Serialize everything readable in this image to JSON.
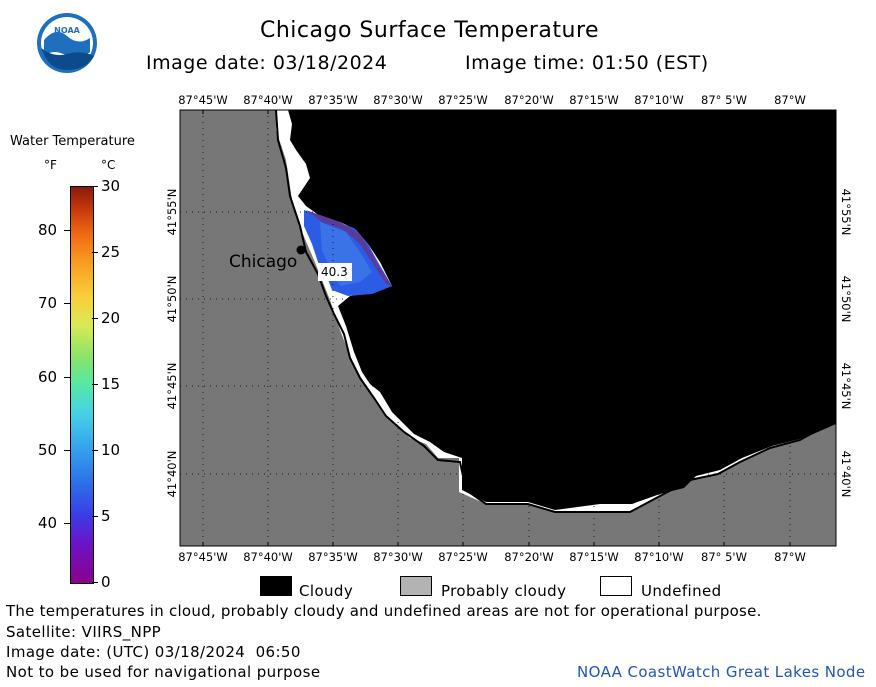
{
  "header": {
    "title": "Chicago Surface Temperature",
    "image_date": "Image date: 03/18/2024",
    "image_time": "Image time: 01:50 (EST)"
  },
  "logo": {
    "text": "NOAA"
  },
  "colorbar": {
    "title": "Water Temperature",
    "unit_f": "°F",
    "unit_c": "°C",
    "f_ticks": [
      "80",
      "70",
      "60",
      "50",
      "40"
    ],
    "c_ticks": [
      "30",
      "25",
      "20",
      "15",
      "10",
      "5",
      "0"
    ]
  },
  "map": {
    "lon_labels": [
      "87°45'W",
      "87°40'W",
      "87°35'W",
      "87°30'W",
      "87°25'W",
      "87°20'W",
      "87°15'W",
      "87°10'W",
      "87° 5'W",
      "87°W"
    ],
    "lat_labels": [
      "41°55'N",
      "41°50'N",
      "41°45'N",
      "41°40'N"
    ],
    "city_label": "Chicago",
    "sample_value": "40.3"
  },
  "legend": {
    "cloudy": "Cloudy",
    "probably_cloudy": "Probably cloudy",
    "undefined": "Undefined"
  },
  "footer": {
    "disclaimer": "The temperatures in cloud, probably cloudy and undefined areas are not for operational purpose.",
    "satellite": "Satellite: VIIRS_NPP",
    "utc_date": "Image date: (UTC) 03/18/2024  06:50",
    "navigation": "Not to be used for navigational purpose",
    "credit": "NOAA CoastWatch Great Lakes Node"
  },
  "colors": {
    "land": "#777777",
    "cloud": "#000000",
    "water_cold": "#2c5be6",
    "credit": "#2255bb"
  }
}
